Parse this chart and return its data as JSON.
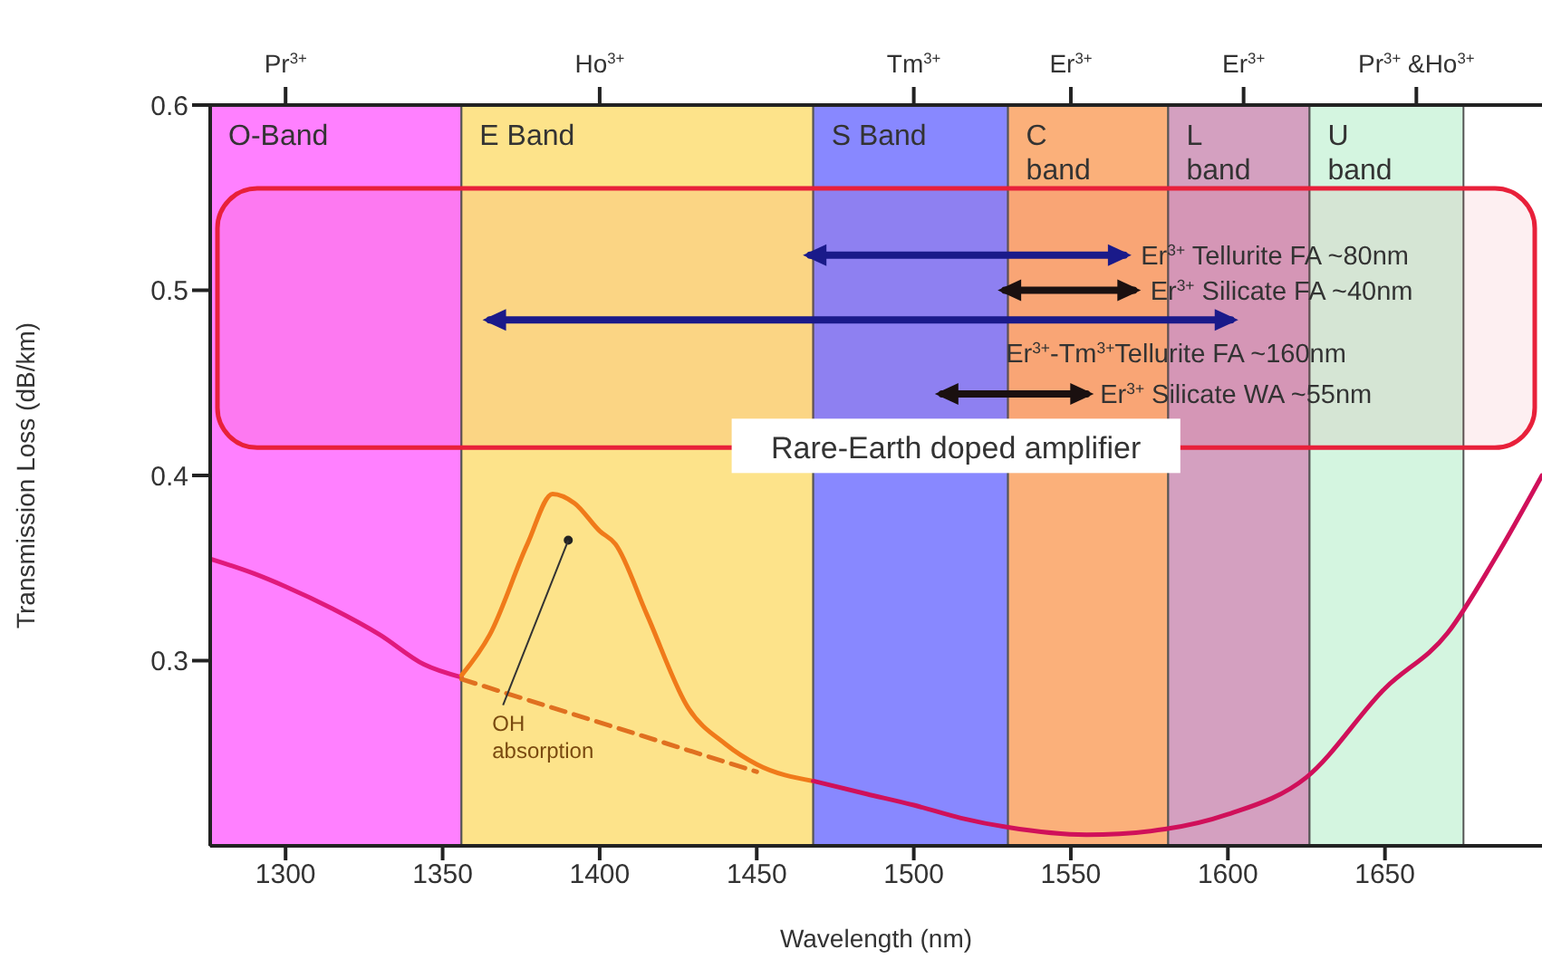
{
  "chart_data": {
    "type": "line",
    "xlabel": "Wavelength (nm)",
    "ylabel": "Transmission Loss (dB/km)",
    "xlim": [
      1276,
      1700
    ],
    "xticks": [
      1300,
      1350,
      1400,
      1450,
      1500,
      1550,
      1600,
      1650
    ],
    "ylim": [
      0.2,
      0.6
    ],
    "yticks": [
      0.3,
      0.4,
      0.5,
      0.6
    ],
    "grid": false,
    "series": [
      {
        "color": "#e0197d",
        "x": [
          1276,
          1290,
          1300,
          1315,
          1330,
          1344,
          1356
        ],
        "values": [
          0.355,
          0.347,
          0.34,
          0.328,
          0.314,
          0.298,
          0.291
        ]
      },
      {
        "color": "#f07a1a",
        "x": [
          1356,
          1365,
          1377,
          1385,
          1392,
          1400,
          1405,
          1415,
          1428,
          1440,
          1450,
          1468
        ],
        "values": [
          0.292,
          0.314,
          0.363,
          0.39,
          0.385,
          0.37,
          0.363,
          0.325,
          0.275,
          0.255,
          0.244,
          0.235
        ]
      },
      {
        "color": "#d0105a",
        "x": [
          1468,
          1485,
          1500,
          1515,
          1530,
          1555,
          1580,
          1600,
          1625,
          1650,
          1670,
          1685,
          1700
        ],
        "values": [
          0.235,
          0.228,
          0.222,
          0.215,
          0.21,
          0.206,
          0.209,
          0.217,
          0.237,
          0.285,
          0.315,
          0.355,
          0.4
        ]
      },
      {
        "color": "#e07020",
        "line_style": "dashed",
        "x": [
          1356,
          1450
        ],
        "values": [
          0.29,
          0.24
        ]
      },
      {
        "color": "#1a1a8a",
        "marker": "triangle",
        "x": [
          1467,
          1567
        ],
        "values": [
          0.519,
          0.519
        ]
      },
      {
        "color": "#1a1010",
        "marker": "triangle",
        "x": [
          1529,
          1570
        ],
        "values": [
          0.5,
          0.5
        ]
      },
      {
        "color": "#1a1a8a",
        "marker": "triangle",
        "x": [
          1365,
          1601
        ],
        "values": [
          0.484,
          0.484
        ]
      },
      {
        "color": "#1a1010",
        "marker": "triangle",
        "x": [
          1509,
          1555
        ],
        "values": [
          0.444,
          0.444
        ]
      }
    ],
    "bands": [
      {
        "axis": "x",
        "from": 1276,
        "to": 1356,
        "label": "O-Band",
        "color": "#ff80ff"
      },
      {
        "axis": "x",
        "from": 1356,
        "to": 1468,
        "label": "E Band",
        "color": "#fde38a"
      },
      {
        "axis": "x",
        "from": 1468,
        "to": 1530,
        "label": "S Band",
        "color": "#8888ff"
      },
      {
        "axis": "x",
        "from": 1530,
        "to": 1581,
        "label": "C band",
        "color": "#fbb07a"
      },
      {
        "axis": "x",
        "from": 1581,
        "to": 1626,
        "label": "L band",
        "color": "#d4a0c0"
      },
      {
        "axis": "x",
        "from": 1626,
        "to": 1675,
        "label": "U band",
        "color": "#d4f5e0"
      },
      {
        "axis": "y",
        "from": 0.415,
        "to": 0.555,
        "label": "Rare-Earth doped amplifier",
        "color": "#e8203a"
      }
    ],
    "annotations": [
      {
        "text": "Er$^{3+}$ Tellurite  FA ~80nm",
        "x": 1570,
        "y": 0.519
      },
      {
        "text": "Er$^{3+}$ Silicate FA ~40nm",
        "x": 1573,
        "y": 0.5
      },
      {
        "text": "Er$^{3+}$-Tm$^{3+}$Tellurite  FA ~160nm",
        "x": 1527,
        "y": 0.466
      },
      {
        "text": "Er$^{3+}$ Silicate WA ~55nm",
        "x": 1557,
        "y": 0.444
      },
      {
        "text": "OH absorption",
        "x": 1390,
        "y": 0.365
      },
      {
        "text": "Pr$^{3+}$",
        "x": 1300,
        "y": 0.6
      },
      {
        "text": "Ho$^{3+}$",
        "x": 1400,
        "y": 0.6
      },
      {
        "text": "Tm$^{3+}$",
        "x": 1500,
        "y": 0.6
      },
      {
        "text": "Er$^{3+}$",
        "x": 1550,
        "y": 0.6
      },
      {
        "text": "Er$^{3+}$",
        "x": 1605,
        "y": 0.6
      },
      {
        "text": "Pr$^{3+}$ &Ho$^{3+}$",
        "x": 1660,
        "y": 0.6
      }
    ]
  }
}
